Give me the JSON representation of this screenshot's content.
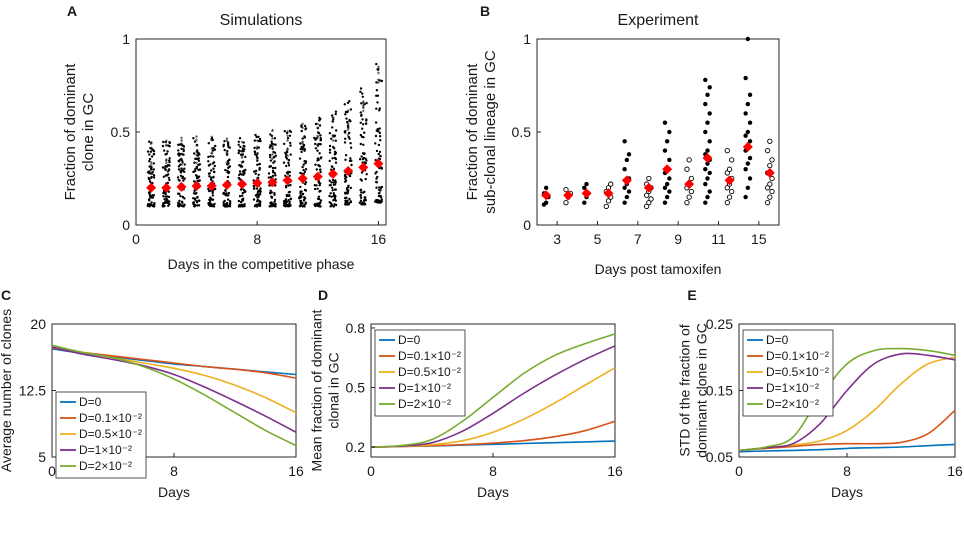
{
  "colors": {
    "d0": "#0072BD",
    "d01": "#D95319",
    "d05": "#EDB120",
    "d1": "#7E2F8E",
    "d2": "#77AC30",
    "median": "#ff0000",
    "dot": "#000000"
  },
  "chart_data": [
    {
      "panel": "A",
      "type": "scatter",
      "title": "Simulations",
      "xlabel": "Days in the competitive phase",
      "ylabel": [
        "Fraction of dominant",
        "clone in GC"
      ],
      "xlim": [
        0,
        16.5
      ],
      "ylim": [
        0,
        1
      ],
      "xticks": [
        0,
        8,
        16
      ],
      "yticks": [
        0,
        0.5,
        1
      ],
      "xtick_labels": [
        "0",
        "8",
        "16"
      ],
      "ytick_labels": [
        "0",
        "0.5",
        "1"
      ],
      "days": [
        1,
        2,
        3,
        4,
        5,
        6,
        7,
        8,
        9,
        10,
        11,
        12,
        13,
        14,
        15,
        16
      ],
      "min_values": [
        0.1,
        0.1,
        0.1,
        0.1,
        0.1,
        0.1,
        0.1,
        0.1,
        0.1,
        0.1,
        0.1,
        0.1,
        0.1,
        0.11,
        0.11,
        0.12
      ],
      "max_values": [
        0.45,
        0.45,
        0.46,
        0.47,
        0.47,
        0.47,
        0.48,
        0.49,
        0.5,
        0.52,
        0.55,
        0.58,
        0.62,
        0.68,
        0.75,
        0.87
      ],
      "median_values": [
        0.2,
        0.2,
        0.205,
        0.21,
        0.21,
        0.215,
        0.22,
        0.225,
        0.23,
        0.24,
        0.25,
        0.26,
        0.275,
        0.29,
        0.31,
        0.33
      ]
    },
    {
      "panel": "B",
      "type": "scatter",
      "title": "Experiment",
      "xlabel": "Days post tamoxifen",
      "ylabel": [
        "Fraction of dominant",
        "sub-clonal lineage in GC"
      ],
      "ylim": [
        0,
        1
      ],
      "yticks": [
        0,
        0.5,
        1
      ],
      "ytick_labels": [
        "0",
        "0.5",
        "1"
      ],
      "categories": [
        "3",
        "5",
        "7",
        "9",
        "11",
        "15"
      ],
      "series": [
        {
          "name": "filled",
          "marker": "filled",
          "points": [
            [
              0.11,
              0.12,
              0.15,
              0.17,
              0.2
            ],
            [
              0.12,
              0.15,
              0.17,
              0.2,
              0.22
            ],
            [
              0.12,
              0.15,
              0.18,
              0.2,
              0.22,
              0.25,
              0.3,
              0.35,
              0.38,
              0.45
            ],
            [
              0.12,
              0.15,
              0.18,
              0.2,
              0.22,
              0.25,
              0.28,
              0.3,
              0.35,
              0.4,
              0.45,
              0.5,
              0.55
            ],
            [
              0.12,
              0.15,
              0.18,
              0.22,
              0.25,
              0.28,
              0.3,
              0.33,
              0.35,
              0.38,
              0.4,
              0.45,
              0.5,
              0.55,
              0.6,
              0.65,
              0.7,
              0.74,
              0.78
            ],
            [
              0.15,
              0.2,
              0.25,
              0.3,
              0.33,
              0.36,
              0.4,
              0.42,
              0.45,
              0.48,
              0.5,
              0.55,
              0.6,
              0.65,
              0.7,
              0.79,
              1.0
            ]
          ],
          "medians": [
            0.16,
            0.17,
            0.24,
            0.3,
            0.36,
            0.42
          ]
        },
        {
          "name": "open",
          "marker": "open",
          "points": [
            [
              0.12,
              0.15,
              0.17,
              0.19
            ],
            [
              0.1,
              0.13,
              0.15,
              0.18,
              0.2,
              0.22
            ],
            [
              0.1,
              0.12,
              0.14,
              0.16,
              0.18,
              0.2,
              0.22,
              0.25
            ],
            [
              0.12,
              0.15,
              0.18,
              0.2,
              0.22,
              0.25,
              0.3,
              0.35
            ],
            [
              0.12,
              0.15,
              0.18,
              0.2,
              0.22,
              0.25,
              0.28,
              0.3,
              0.35,
              0.4
            ],
            [
              0.12,
              0.15,
              0.18,
              0.2,
              0.22,
              0.25,
              0.28,
              0.32,
              0.35,
              0.4,
              0.45
            ]
          ],
          "medians": [
            0.16,
            0.17,
            0.2,
            0.22,
            0.24,
            0.28
          ]
        }
      ]
    },
    {
      "panel": "C",
      "type": "line",
      "xlabel": "Days",
      "ylabel": [
        "Average number of clones"
      ],
      "xlim": [
        0,
        16
      ],
      "ylim": [
        5,
        20
      ],
      "xticks": [
        0,
        8,
        16
      ],
      "yticks": [
        5,
        12.5,
        20
      ],
      "xtick_labels": [
        "0",
        "8",
        "16"
      ],
      "ytick_labels": [
        "5",
        "12.5",
        "20"
      ],
      "legend_position": "left-middle",
      "x": [
        0,
        2,
        4,
        6,
        8,
        10,
        12,
        14,
        16
      ],
      "series": [
        {
          "name": "D=0",
          "color_key": "d0",
          "values": [
            17.2,
            16.7,
            16.3,
            15.9,
            15.5,
            15.2,
            14.9,
            14.6,
            14.3
          ]
        },
        {
          "name": "D=0.1×10⁻²",
          "color_key": "d01",
          "values": [
            17.3,
            16.8,
            16.4,
            16.0,
            15.6,
            15.2,
            14.9,
            14.5,
            13.9
          ]
        },
        {
          "name": "D=0.5×10⁻²",
          "color_key": "d05",
          "values": [
            17.5,
            16.8,
            16.2,
            15.6,
            15.0,
            14.2,
            13.1,
            11.7,
            10.0
          ]
        },
        {
          "name": "D=1×10⁻²",
          "color_key": "d1",
          "values": [
            17.4,
            16.6,
            16.0,
            15.3,
            14.3,
            12.9,
            11.3,
            9.6,
            7.8
          ]
        },
        {
          "name": "D=2×10⁻²",
          "color_key": "d2",
          "values": [
            17.6,
            16.8,
            16.2,
            15.2,
            13.8,
            12.0,
            10.0,
            8.0,
            6.3
          ]
        }
      ]
    },
    {
      "panel": "D",
      "type": "line",
      "xlabel": "Days",
      "ylabel": [
        "Mean fraction of dominant",
        "clonal in GC"
      ],
      "xlim": [
        0,
        16
      ],
      "ylim": [
        0.15,
        0.82
      ],
      "xticks": [
        0,
        8,
        16
      ],
      "yticks": [
        0.2,
        0.5,
        0.8
      ],
      "xtick_labels": [
        "0",
        "8",
        "16"
      ],
      "ytick_labels": [
        "0.2",
        "0.5",
        "0.8"
      ],
      "legend_position": "top-left",
      "x": [
        0,
        2,
        4,
        6,
        8,
        10,
        12,
        14,
        16
      ],
      "series": [
        {
          "name": "D=0",
          "color_key": "d0",
          "values": [
            0.2,
            0.203,
            0.206,
            0.21,
            0.214,
            0.218,
            0.222,
            0.226,
            0.23
          ]
        },
        {
          "name": "D=0.1×10⁻²",
          "color_key": "d01",
          "values": [
            0.2,
            0.203,
            0.207,
            0.212,
            0.22,
            0.232,
            0.252,
            0.282,
            0.33
          ]
        },
        {
          "name": "D=0.5×10⁻²",
          "color_key": "d05",
          "values": [
            0.2,
            0.203,
            0.212,
            0.232,
            0.275,
            0.34,
            0.42,
            0.51,
            0.6
          ]
        },
        {
          "name": "D=1×10⁻²",
          "color_key": "d1",
          "values": [
            0.2,
            0.205,
            0.222,
            0.28,
            0.37,
            0.47,
            0.56,
            0.64,
            0.71
          ]
        },
        {
          "name": "D=2×10⁻²",
          "color_key": "d2",
          "values": [
            0.2,
            0.208,
            0.238,
            0.33,
            0.45,
            0.57,
            0.66,
            0.72,
            0.77
          ]
        }
      ]
    },
    {
      "panel": "E",
      "type": "line",
      "xlabel": "Days",
      "ylabel": [
        "STD of the fraction of",
        "dominant clone in GC"
      ],
      "xlim": [
        0,
        16
      ],
      "ylim": [
        0.05,
        0.25
      ],
      "xticks": [
        0,
        8,
        16
      ],
      "yticks": [
        0.05,
        0.15,
        0.25
      ],
      "xtick_labels": [
        "0",
        "8",
        "16"
      ],
      "ytick_labels": [
        "0.05",
        "0.15",
        "0.25"
      ],
      "legend_position": "top-left",
      "x": [
        0,
        2,
        4,
        6,
        8,
        10,
        12,
        14,
        16
      ],
      "series": [
        {
          "name": "D=0",
          "color_key": "d0",
          "values": [
            0.058,
            0.059,
            0.06,
            0.061,
            0.063,
            0.064,
            0.065,
            0.067,
            0.069
          ]
        },
        {
          "name": "D=0.1×10⁻²",
          "color_key": "d01",
          "values": [
            0.06,
            0.063,
            0.066,
            0.069,
            0.07,
            0.07,
            0.072,
            0.085,
            0.12
          ]
        },
        {
          "name": "D=0.5×10⁻²",
          "color_key": "d05",
          "values": [
            0.06,
            0.064,
            0.068,
            0.074,
            0.09,
            0.12,
            0.16,
            0.19,
            0.2
          ]
        },
        {
          "name": "D=1×10⁻²",
          "color_key": "d1",
          "values": [
            0.06,
            0.064,
            0.07,
            0.1,
            0.15,
            0.19,
            0.205,
            0.203,
            0.196
          ]
        },
        {
          "name": "D=2×10⁻²",
          "color_key": "d2",
          "values": [
            0.06,
            0.065,
            0.08,
            0.14,
            0.19,
            0.21,
            0.213,
            0.21,
            0.203
          ]
        }
      ]
    }
  ]
}
